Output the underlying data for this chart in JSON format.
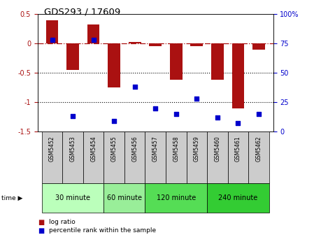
{
  "title": "GDS293 / 17609",
  "samples": [
    "GSM5452",
    "GSM5453",
    "GSM5454",
    "GSM5455",
    "GSM5456",
    "GSM5457",
    "GSM5458",
    "GSM5459",
    "GSM5460",
    "GSM5461",
    "GSM5462"
  ],
  "log_ratio": [
    0.4,
    -0.45,
    0.32,
    -0.75,
    0.02,
    -0.05,
    -0.62,
    -0.04,
    -0.62,
    -1.1,
    -0.1
  ],
  "percentile_rank": [
    78,
    13,
    78,
    9,
    38,
    20,
    15,
    28,
    12,
    7,
    15
  ],
  "groups": [
    {
      "label": "30 minute",
      "indices": [
        0,
        1,
        2
      ],
      "color": "#bbffbb"
    },
    {
      "label": "60 minute",
      "indices": [
        3,
        4
      ],
      "color": "#99ee99"
    },
    {
      "label": "120 minute",
      "indices": [
        5,
        6,
        7
      ],
      "color": "#55dd55"
    },
    {
      "label": "240 minute",
      "indices": [
        8,
        9,
        10
      ],
      "color": "#33cc33"
    }
  ],
  "bar_color": "#aa1111",
  "scatter_color": "#0000cc",
  "ylim_left": [
    -1.5,
    0.5
  ],
  "ylim_right": [
    0,
    100
  ],
  "yticks_left": [
    -1.5,
    -1.0,
    -0.5,
    0.0,
    0.5
  ],
  "yticks_right": [
    0,
    25,
    50,
    75,
    100
  ],
  "hline_y": 0.0,
  "dotted_lines": [
    -0.5,
    -1.0
  ],
  "background_color": "#ffffff",
  "sample_box_color": "#cccccc"
}
